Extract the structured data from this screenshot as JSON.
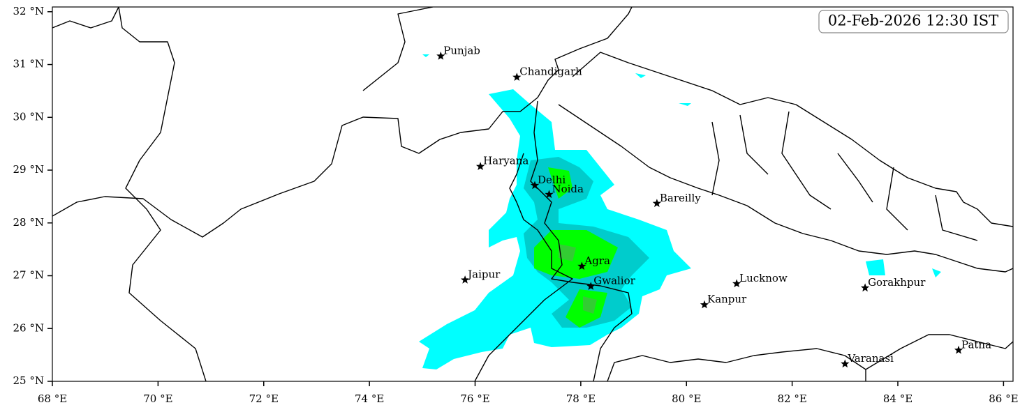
{
  "map": {
    "timestamp": "02-Feb-2026 12:30 IST",
    "xlim": [
      68,
      86.18
    ],
    "ylim": [
      25,
      32.09
    ],
    "xticks": [
      {
        "value": 68,
        "label": "68 °E"
      },
      {
        "value": 70,
        "label": "70 °E"
      },
      {
        "value": 72,
        "label": "72 °E"
      },
      {
        "value": 74,
        "label": "74 °E"
      },
      {
        "value": 76,
        "label": "76 °E"
      },
      {
        "value": 78,
        "label": "78 °E"
      },
      {
        "value": 80,
        "label": "80 °E"
      },
      {
        "value": 82,
        "label": "82 °E"
      },
      {
        "value": 84,
        "label": "84 °E"
      },
      {
        "value": 86,
        "label": "86 °E"
      }
    ],
    "yticks": [
      {
        "value": 25,
        "label": "25 °N"
      },
      {
        "value": 26,
        "label": "26 °N"
      },
      {
        "value": 27,
        "label": "27 °N"
      },
      {
        "value": 28,
        "label": "28 °N"
      },
      {
        "value": 29,
        "label": "29 °N"
      },
      {
        "value": 30,
        "label": "30 °N"
      },
      {
        "value": 31,
        "label": "31 °N"
      },
      {
        "value": 32,
        "label": "32 °N"
      }
    ],
    "cities": [
      {
        "name": "Punjab",
        "lon": 75.35,
        "lat": 31.16
      },
      {
        "name": "Chandigarh",
        "lon": 76.79,
        "lat": 30.76
      },
      {
        "name": "Haryana",
        "lon": 76.1,
        "lat": 29.07
      },
      {
        "name": "Delhi",
        "lon": 77.13,
        "lat": 28.71
      },
      {
        "name": "Noida",
        "lon": 77.4,
        "lat": 28.54
      },
      {
        "name": "Bareilly",
        "lon": 79.44,
        "lat": 28.37
      },
      {
        "name": "Agra",
        "lon": 78.02,
        "lat": 27.18
      },
      {
        "name": "Jaipur",
        "lon": 75.81,
        "lat": 26.92
      },
      {
        "name": "Gwalior",
        "lon": 78.19,
        "lat": 26.8
      },
      {
        "name": "Lucknow",
        "lon": 80.95,
        "lat": 26.85
      },
      {
        "name": "Kanpur",
        "lon": 80.34,
        "lat": 26.45
      },
      {
        "name": "Gorakhpur",
        "lon": 83.38,
        "lat": 26.77
      },
      {
        "name": "Varanasi",
        "lon": 83.0,
        "lat": 25.33
      },
      {
        "name": "Patna",
        "lon": 85.15,
        "lat": 25.59
      }
    ]
  }
}
